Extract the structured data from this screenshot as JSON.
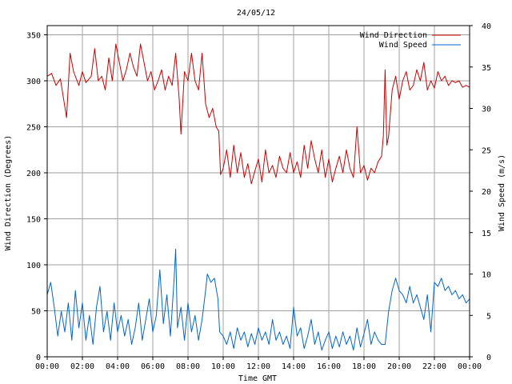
{
  "chart_data": {
    "type": "line",
    "title": "24/05/12",
    "xlabel": "Time GMT",
    "ylabel_left": "Wind Direction (Degrees)",
    "ylabel_right": "Wind Speed (m/s)",
    "x_hours_range": [
      0,
      24
    ],
    "x_ticks": [
      "00:00",
      "02:00",
      "04:00",
      "06:00",
      "08:00",
      "10:00",
      "12:00",
      "14:00",
      "16:00",
      "18:00",
      "20:00",
      "22:00",
      "00:00"
    ],
    "y_left_range": [
      0,
      360
    ],
    "y_left_ticks": [
      "0",
      "50",
      "100",
      "150",
      "200",
      "250",
      "300",
      "350"
    ],
    "y_right_range": [
      0,
      40
    ],
    "y_right_ticks": [
      "0",
      "5",
      "10",
      "15",
      "20",
      "25",
      "30",
      "35",
      "40"
    ],
    "grid": true,
    "legend_position": "top-right",
    "series": [
      {
        "name": "Wind Direction",
        "axis": "left",
        "color": "#cc0000",
        "points": [
          [
            0.0,
            305
          ],
          [
            0.25,
            308
          ],
          [
            0.5,
            295
          ],
          [
            0.75,
            302
          ],
          [
            1.0,
            272
          ],
          [
            1.1,
            260
          ],
          [
            1.3,
            330
          ],
          [
            1.5,
            310
          ],
          [
            1.8,
            295
          ],
          [
            2.0,
            310
          ],
          [
            2.2,
            298
          ],
          [
            2.5,
            305
          ],
          [
            2.7,
            335
          ],
          [
            2.9,
            300
          ],
          [
            3.1,
            305
          ],
          [
            3.3,
            290
          ],
          [
            3.5,
            325
          ],
          [
            3.7,
            300
          ],
          [
            3.9,
            340
          ],
          [
            4.1,
            320
          ],
          [
            4.3,
            300
          ],
          [
            4.5,
            312
          ],
          [
            4.7,
            330
          ],
          [
            4.9,
            315
          ],
          [
            5.1,
            305
          ],
          [
            5.3,
            340
          ],
          [
            5.5,
            320
          ],
          [
            5.7,
            300
          ],
          [
            5.9,
            310
          ],
          [
            6.1,
            290
          ],
          [
            6.3,
            300
          ],
          [
            6.5,
            312
          ],
          [
            6.7,
            290
          ],
          [
            6.9,
            305
          ],
          [
            7.1,
            295
          ],
          [
            7.3,
            330
          ],
          [
            7.5,
            280
          ],
          [
            7.6,
            242
          ],
          [
            7.8,
            310
          ],
          [
            8.0,
            300
          ],
          [
            8.2,
            330
          ],
          [
            8.4,
            300
          ],
          [
            8.6,
            290
          ],
          [
            8.8,
            330
          ],
          [
            9.0,
            275
          ],
          [
            9.2,
            260
          ],
          [
            9.4,
            270
          ],
          [
            9.6,
            250
          ],
          [
            9.75,
            245
          ],
          [
            9.85,
            198
          ],
          [
            10.0,
            205
          ],
          [
            10.2,
            225
          ],
          [
            10.4,
            195
          ],
          [
            10.6,
            230
          ],
          [
            10.8,
            200
          ],
          [
            11.0,
            222
          ],
          [
            11.2,
            195
          ],
          [
            11.4,
            210
          ],
          [
            11.6,
            188
          ],
          [
            11.8,
            202
          ],
          [
            12.0,
            215
          ],
          [
            12.2,
            190
          ],
          [
            12.4,
            225
          ],
          [
            12.6,
            200
          ],
          [
            12.8,
            208
          ],
          [
            13.0,
            195
          ],
          [
            13.2,
            218
          ],
          [
            13.4,
            205
          ],
          [
            13.6,
            200
          ],
          [
            13.8,
            222
          ],
          [
            14.0,
            200
          ],
          [
            14.2,
            212
          ],
          [
            14.4,
            195
          ],
          [
            14.6,
            230
          ],
          [
            14.8,
            205
          ],
          [
            15.0,
            235
          ],
          [
            15.2,
            215
          ],
          [
            15.4,
            200
          ],
          [
            15.6,
            225
          ],
          [
            15.8,
            195
          ],
          [
            16.0,
            215
          ],
          [
            16.2,
            190
          ],
          [
            16.4,
            205
          ],
          [
            16.6,
            218
          ],
          [
            16.8,
            200
          ],
          [
            17.0,
            225
          ],
          [
            17.2,
            205
          ],
          [
            17.4,
            195
          ],
          [
            17.6,
            250
          ],
          [
            17.8,
            200
          ],
          [
            18.0,
            208
          ],
          [
            18.2,
            192
          ],
          [
            18.4,
            205
          ],
          [
            18.6,
            200
          ],
          [
            18.8,
            212
          ],
          [
            19.0,
            218
          ],
          [
            19.1,
            240
          ],
          [
            19.2,
            312
          ],
          [
            19.3,
            230
          ],
          [
            19.4,
            240
          ],
          [
            19.6,
            290
          ],
          [
            19.8,
            305
          ],
          [
            20.0,
            280
          ],
          [
            20.2,
            300
          ],
          [
            20.4,
            310
          ],
          [
            20.6,
            290
          ],
          [
            20.8,
            295
          ],
          [
            21.0,
            312
          ],
          [
            21.2,
            300
          ],
          [
            21.4,
            320
          ],
          [
            21.6,
            290
          ],
          [
            21.8,
            300
          ],
          [
            22.0,
            292
          ],
          [
            22.2,
            310
          ],
          [
            22.4,
            300
          ],
          [
            22.6,
            305
          ],
          [
            22.8,
            295
          ],
          [
            23.0,
            300
          ],
          [
            23.2,
            298
          ],
          [
            23.4,
            300
          ],
          [
            23.6,
            293
          ],
          [
            23.8,
            295
          ],
          [
            24.0,
            293
          ]
        ]
      },
      {
        "name": "Wind Speed",
        "axis": "right",
        "color": "#0066cc",
        "points": [
          [
            0.0,
            7.5
          ],
          [
            0.2,
            9.0
          ],
          [
            0.4,
            6.0
          ],
          [
            0.6,
            2.5
          ],
          [
            0.8,
            5.5
          ],
          [
            1.0,
            3.0
          ],
          [
            1.2,
            6.5
          ],
          [
            1.4,
            2.0
          ],
          [
            1.6,
            8.0
          ],
          [
            1.8,
            3.5
          ],
          [
            2.0,
            6.5
          ],
          [
            2.2,
            2.0
          ],
          [
            2.4,
            5.0
          ],
          [
            2.6,
            1.5
          ],
          [
            2.8,
            6.0
          ],
          [
            3.0,
            8.5
          ],
          [
            3.2,
            3.0
          ],
          [
            3.4,
            5.5
          ],
          [
            3.6,
            2.0
          ],
          [
            3.8,
            6.5
          ],
          [
            4.0,
            3.0
          ],
          [
            4.2,
            5.0
          ],
          [
            4.4,
            2.5
          ],
          [
            4.6,
            4.5
          ],
          [
            4.8,
            1.5
          ],
          [
            5.0,
            3.5
          ],
          [
            5.2,
            6.5
          ],
          [
            5.4,
            2.0
          ],
          [
            5.6,
            4.5
          ],
          [
            5.8,
            7.0
          ],
          [
            6.0,
            3.0
          ],
          [
            6.2,
            5.0
          ],
          [
            6.4,
            10.5
          ],
          [
            6.6,
            4.0
          ],
          [
            6.8,
            7.5
          ],
          [
            7.0,
            2.5
          ],
          [
            7.2,
            9.0
          ],
          [
            7.3,
            13.0
          ],
          [
            7.4,
            3.5
          ],
          [
            7.6,
            6.0
          ],
          [
            7.8,
            2.0
          ],
          [
            8.0,
            6.5
          ],
          [
            8.2,
            3.0
          ],
          [
            8.4,
            5.0
          ],
          [
            8.6,
            2.0
          ],
          [
            8.8,
            4.5
          ],
          [
            9.0,
            8.0
          ],
          [
            9.1,
            10.0
          ],
          [
            9.3,
            9.0
          ],
          [
            9.5,
            9.5
          ],
          [
            9.7,
            7.0
          ],
          [
            9.8,
            3.0
          ],
          [
            10.0,
            2.5
          ],
          [
            10.2,
            1.5
          ],
          [
            10.4,
            3.0
          ],
          [
            10.6,
            1.0
          ],
          [
            10.8,
            3.5
          ],
          [
            11.0,
            2.0
          ],
          [
            11.2,
            3.0
          ],
          [
            11.4,
            1.2
          ],
          [
            11.6,
            2.8
          ],
          [
            11.8,
            1.5
          ],
          [
            12.0,
            3.5
          ],
          [
            12.2,
            2.0
          ],
          [
            12.4,
            3.0
          ],
          [
            12.6,
            1.5
          ],
          [
            12.8,
            4.5
          ],
          [
            13.0,
            2.0
          ],
          [
            13.2,
            3.0
          ],
          [
            13.4,
            1.5
          ],
          [
            13.6,
            2.5
          ],
          [
            13.8,
            1.0
          ],
          [
            14.0,
            6.0
          ],
          [
            14.2,
            2.5
          ],
          [
            14.4,
            3.5
          ],
          [
            14.6,
            1.0
          ],
          [
            14.8,
            2.5
          ],
          [
            15.0,
            4.5
          ],
          [
            15.2,
            1.5
          ],
          [
            15.4,
            3.0
          ],
          [
            15.6,
            0.8
          ],
          [
            15.8,
            2.0
          ],
          [
            16.0,
            3.0
          ],
          [
            16.2,
            1.0
          ],
          [
            16.4,
            2.5
          ],
          [
            16.6,
            1.2
          ],
          [
            16.8,
            3.0
          ],
          [
            17.0,
            1.5
          ],
          [
            17.2,
            2.5
          ],
          [
            17.4,
            0.8
          ],
          [
            17.6,
            3.5
          ],
          [
            17.8,
            1.2
          ],
          [
            18.0,
            2.8
          ],
          [
            18.2,
            4.5
          ],
          [
            18.4,
            1.5
          ],
          [
            18.6,
            3.0
          ],
          [
            18.8,
            2.0
          ],
          [
            19.0,
            1.5
          ],
          [
            19.2,
            1.5
          ],
          [
            19.4,
            5.5
          ],
          [
            19.6,
            8.0
          ],
          [
            19.8,
            9.5
          ],
          [
            20.0,
            8.0
          ],
          [
            20.2,
            7.5
          ],
          [
            20.4,
            6.5
          ],
          [
            20.6,
            8.5
          ],
          [
            20.8,
            6.5
          ],
          [
            21.0,
            7.5
          ],
          [
            21.2,
            6.0
          ],
          [
            21.4,
            4.5
          ],
          [
            21.6,
            7.5
          ],
          [
            21.8,
            3.0
          ],
          [
            22.0,
            9.0
          ],
          [
            22.2,
            8.5
          ],
          [
            22.4,
            9.5
          ],
          [
            22.6,
            8.0
          ],
          [
            22.8,
            8.5
          ],
          [
            23.0,
            7.5
          ],
          [
            23.2,
            8.0
          ],
          [
            23.4,
            7.0
          ],
          [
            23.6,
            7.5
          ],
          [
            23.8,
            6.5
          ],
          [
            24.0,
            7.0
          ]
        ]
      }
    ]
  }
}
